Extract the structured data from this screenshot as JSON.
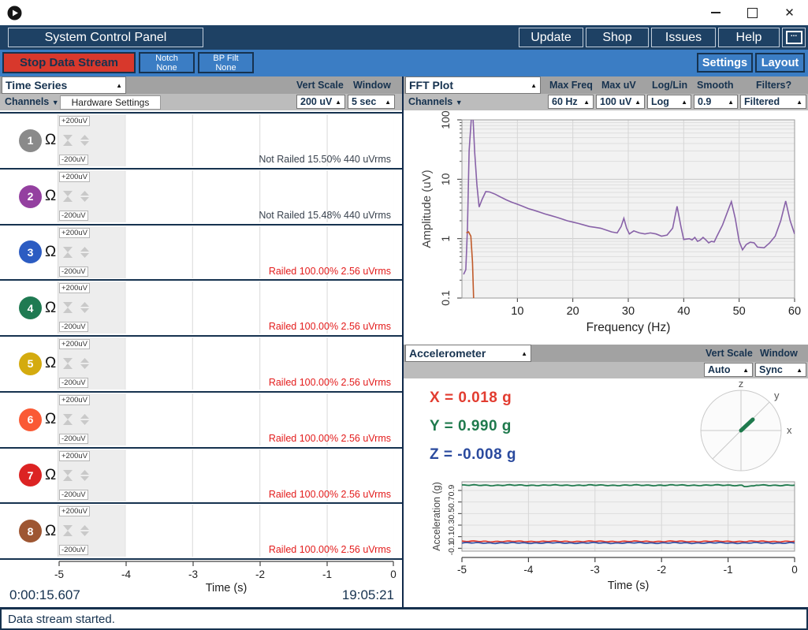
{
  "window": {
    "minimize": "minimize",
    "maximize": "maximize",
    "close": "✕"
  },
  "icons": {
    "up": "▲",
    "down": "▼",
    "dots": "..."
  },
  "navbar": {
    "title": "System Control Panel",
    "buttons": [
      "Update",
      "Shop",
      "Issues",
      "Help"
    ]
  },
  "toolbar": {
    "stop": "Stop Data Stream",
    "notch_line1": "Notch",
    "notch_line2": "None",
    "bp_line1": "BP Filt",
    "bp_line2": "None",
    "settings": "Settings",
    "layout": "Layout"
  },
  "time_series": {
    "title": "Time Series",
    "vert_scale_label": "Vert Scale",
    "window_label": "Window",
    "channels_label": "Channels",
    "hardware_settings": "Hardware Settings",
    "vert_scale_value": "200 uV",
    "window_value": "5 sec",
    "scale_top": "+200uV",
    "scale_bottom": "-200uV",
    "impedance_symbol": "Ω",
    "xaxis_ticks": [
      "-5",
      "-4",
      "-3",
      "-2",
      "-1",
      "0"
    ],
    "xaxis_label": "Time (s)",
    "elapsed_time": "0:00:15.607",
    "clock_time": "19:05:21",
    "channels": [
      {
        "num": "1",
        "color": "#8a8a8a",
        "status": "Not Railed 15.50% 440 uVrms",
        "status_color": "#39424e"
      },
      {
        "num": "2",
        "color": "#9440a0",
        "status": "Not Railed 15.48% 440 uVrms",
        "status_color": "#39424e"
      },
      {
        "num": "3",
        "color": "#2c5cc2",
        "status": "Railed 100.00% 2.56 uVrms",
        "status_color": "#e31c1c"
      },
      {
        "num": "4",
        "color": "#1f7a52",
        "status": "Railed 100.00% 2.56 uVrms",
        "status_color": "#e31c1c"
      },
      {
        "num": "5",
        "color": "#d4ab0f",
        "status": "Railed 100.00% 2.56 uVrms",
        "status_color": "#e31c1c"
      },
      {
        "num": "6",
        "color": "#fa5a35",
        "status": "Railed 100.00% 2.56 uVrms",
        "status_color": "#e31c1c"
      },
      {
        "num": "7",
        "color": "#dc2323",
        "status": "Railed 100.00% 2.56 uVrms",
        "status_color": "#e31c1c"
      },
      {
        "num": "8",
        "color": "#9e5632",
        "status": "Railed 100.00% 2.56 uVrms",
        "status_color": "#e31c1c"
      }
    ]
  },
  "fft": {
    "title": "FFT Plot",
    "channels_label": "Channels",
    "controls": [
      {
        "label": "Max Freq",
        "value": "60 Hz"
      },
      {
        "label": "Max uV",
        "value": "100 uV"
      },
      {
        "label": "Log/Lin",
        "value": "Log"
      },
      {
        "label": "Smooth",
        "value": "0.9"
      },
      {
        "label": "Filters?",
        "value": "Filtered"
      }
    ]
  },
  "accelerometer": {
    "title": "Accelerometer",
    "vert_scale_label": "Vert Scale",
    "window_label": "Window",
    "vert_scale_value": "Auto",
    "window_value": "Sync",
    "x_value": "X = 0.018 g",
    "y_value": "Y = 0.990 g",
    "z_value": "Z = -0.008 g",
    "x_color": "#e23c30",
    "y_color": "#1f7a4d",
    "z_color": "#2a4a9e",
    "vector_color": "#1f7a4d",
    "ball_axis_labels": {
      "z": "z",
      "y": "y",
      "x": "x"
    }
  },
  "status_bar": {
    "message": "Data stream started."
  },
  "chart_data": [
    {
      "name": "FFT Plot",
      "type": "line",
      "xlabel": "Frequency (Hz)",
      "ylabel": "Amplitude (uV)",
      "xlim": [
        0,
        60
      ],
      "ylim": [
        0.1,
        100
      ],
      "yscale": "log",
      "xticks": [
        10,
        20,
        30,
        40,
        50,
        60
      ],
      "yticks": [
        0.1,
        1,
        10,
        100
      ],
      "grid": true,
      "series": [
        {
          "name": "eeg-fft-purple",
          "color": "#8862a8",
          "x": [
            0.3,
            0.7,
            1.0,
            1.3,
            1.7,
            2.0,
            2.3,
            2.7,
            3.1,
            3.6,
            4.3,
            5,
            6,
            7,
            8,
            9,
            10,
            11,
            12,
            13,
            14,
            15,
            16,
            17,
            18,
            19,
            20,
            21,
            22,
            23,
            24,
            25,
            26,
            27,
            28,
            28.7,
            29.2,
            29.7,
            30.2,
            31,
            31.5,
            32,
            33,
            34,
            35,
            36,
            37,
            38,
            38.8,
            39.5,
            40,
            41,
            41.5,
            42,
            42.5,
            43,
            43.5,
            44,
            44.5,
            45,
            45.5,
            46,
            47,
            48,
            48.6,
            49.3,
            50,
            50.6,
            51.3,
            52,
            52.7,
            53.3,
            54.5,
            55.5,
            56.5,
            57.5,
            58.4,
            59.2,
            60
          ],
          "y": [
            0.25,
            0.3,
            1.5,
            30,
            110,
            105,
            28,
            8,
            3.4,
            4.5,
            6.2,
            6.1,
            5.6,
            5.0,
            4.5,
            4.1,
            3.8,
            3.5,
            3.2,
            3.0,
            2.8,
            2.6,
            2.45,
            2.3,
            2.15,
            2.0,
            1.9,
            1.8,
            1.7,
            1.6,
            1.55,
            1.5,
            1.4,
            1.3,
            1.25,
            1.6,
            2.2,
            1.5,
            1.2,
            1.35,
            1.3,
            1.25,
            1.2,
            1.25,
            1.2,
            1.1,
            1.15,
            1.5,
            3.5,
            1.6,
            0.97,
            1.0,
            0.95,
            1.05,
            0.9,
            0.95,
            1.05,
            0.95,
            0.85,
            0.9,
            0.88,
            1.1,
            1.7,
            3.0,
            4.2,
            2.2,
            0.9,
            0.65,
            0.8,
            0.87,
            0.85,
            0.72,
            0.7,
            0.85,
            1.1,
            2.0,
            4.3,
            2.0,
            1.2
          ]
        },
        {
          "name": "eeg-fft-orange",
          "color": "#c05a2a",
          "x": [
            0.8,
            1.2,
            1.6,
            1.9,
            2.1
          ],
          "y": [
            1.25,
            1.3,
            1.1,
            0.4,
            0.1
          ]
        }
      ]
    },
    {
      "name": "Accelerometer",
      "type": "line",
      "xlabel": "Time (s)",
      "ylabel": "Acceleration (g)",
      "xlim": [
        -5,
        0
      ],
      "ylim": [
        -0.15,
        1.05
      ],
      "xticks": [
        -5,
        -4,
        -3,
        -2,
        -1,
        0
      ],
      "yticks": [
        0.9,
        0.7,
        0.5,
        0.3,
        0.1,
        -0.1
      ],
      "grid": true,
      "series": [
        {
          "name": "X",
          "color": "#e23c30",
          "mean": 0.018
        },
        {
          "name": "Y",
          "color": "#1f7a4d",
          "mean": 0.99
        },
        {
          "name": "Z",
          "color": "#3a57a8",
          "mean": -0.008
        }
      ]
    },
    {
      "name": "Time Series",
      "type": "line",
      "xlabel": "Time (s)",
      "xlim": [
        -5,
        0
      ],
      "xticks": [
        -5,
        -4,
        -3,
        -2,
        -1,
        0
      ],
      "ylim_per_channel": [
        -200,
        200
      ],
      "series": []
    }
  ]
}
